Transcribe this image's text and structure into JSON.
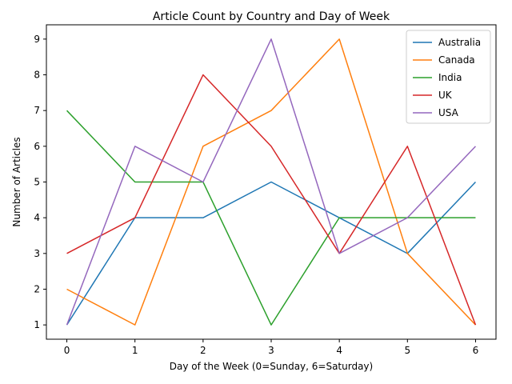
{
  "chart_data": {
    "type": "line",
    "title": "Article Count by Country and Day of Week",
    "xlabel": "Day of the Week (0=Sunday, 6=Saturday)",
    "ylabel": "Number of Articles",
    "x": [
      0,
      1,
      2,
      3,
      4,
      5,
      6
    ],
    "xlim": [
      -0.3,
      6.3
    ],
    "ylim": [
      0.6,
      9.4
    ],
    "xticks": [
      0,
      1,
      2,
      3,
      4,
      5,
      6
    ],
    "yticks": [
      1,
      2,
      3,
      4,
      5,
      6,
      7,
      8,
      9
    ],
    "grid": false,
    "legend": "top-right",
    "series": [
      {
        "name": "Australia",
        "color": "#1f77b4",
        "values": [
          1,
          4,
          4,
          5,
          4,
          3,
          5
        ]
      },
      {
        "name": "Canada",
        "color": "#ff7f0e",
        "values": [
          2,
          1,
          6,
          7,
          9,
          3,
          1
        ]
      },
      {
        "name": "India",
        "color": "#2ca02c",
        "values": [
          7,
          5,
          5,
          1,
          4,
          4,
          4
        ]
      },
      {
        "name": "UK",
        "color": "#d62728",
        "values": [
          3,
          4,
          8,
          6,
          3,
          6,
          1
        ]
      },
      {
        "name": "USA",
        "color": "#9467bd",
        "values": [
          1,
          6,
          5,
          9,
          3,
          4,
          6
        ]
      }
    ]
  }
}
